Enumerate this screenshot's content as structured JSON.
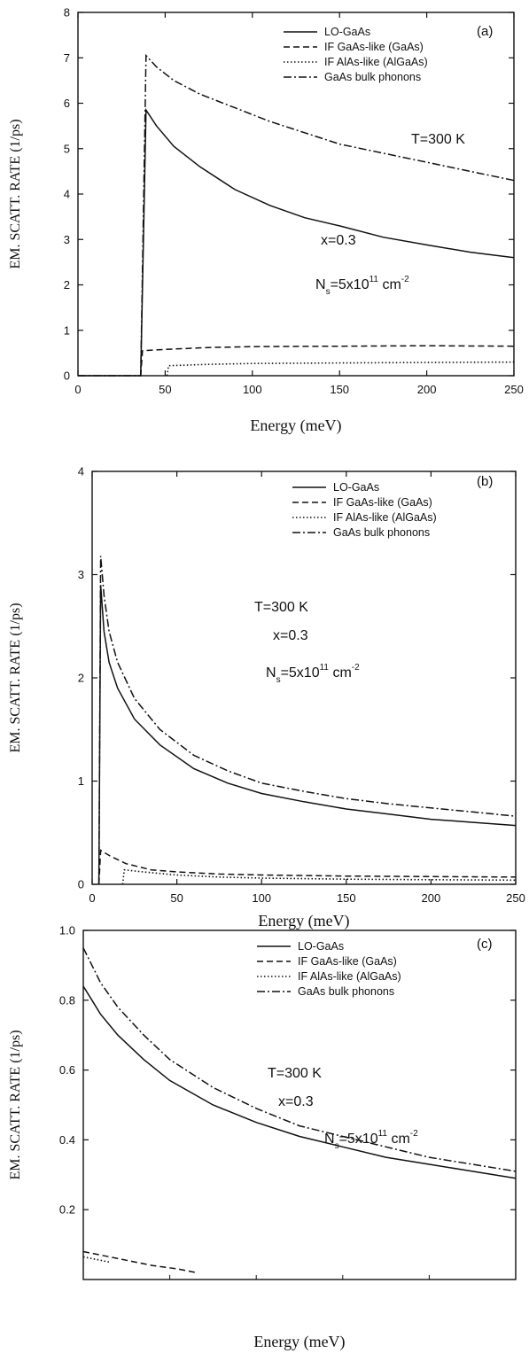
{
  "chart_data": [
    {
      "type": "line",
      "panel_label": "(a)",
      "xlabel": "Energy (meV)",
      "ylabel": "EM. SCATT. RATE (1/ps)",
      "xlim": [
        0,
        250
      ],
      "ylim": [
        0,
        8
      ],
      "xticks": [
        0,
        50,
        100,
        150,
        200,
        250
      ],
      "yticks": [
        0,
        1,
        2,
        3,
        4,
        5,
        6,
        7,
        8
      ],
      "legend_position": "top-right",
      "annotations": [
        "T=300 K",
        "x=0.3",
        "Ns=5x10^11 cm^-2"
      ],
      "series": [
        {
          "name": "LO-GaAs",
          "style": "solid",
          "x": [
            0,
            36,
            36,
            39,
            45,
            55,
            70,
            90,
            110,
            130,
            150,
            175,
            200,
            225,
            250
          ],
          "y": [
            0,
            0,
            0,
            5.85,
            5.5,
            5.05,
            4.6,
            4.1,
            3.75,
            3.48,
            3.3,
            3.05,
            2.88,
            2.72,
            2.6
          ]
        },
        {
          "name": "IF GaAs-like (GaAs)",
          "style": "dashed",
          "x": [
            36,
            37,
            50,
            75,
            100,
            150,
            200,
            250
          ],
          "y": [
            0,
            0.55,
            0.58,
            0.62,
            0.64,
            0.65,
            0.66,
            0.65
          ]
        },
        {
          "name": "IF AlAs-like (AlGaAs)",
          "style": "dotted",
          "x": [
            51,
            52,
            75,
            100,
            150,
            200,
            250
          ],
          "y": [
            0,
            0.22,
            0.25,
            0.27,
            0.28,
            0.29,
            0.3
          ]
        },
        {
          "name": "GaAs bulk phonons",
          "style": "dashdot",
          "x": [
            0,
            36,
            36,
            39,
            45,
            55,
            70,
            90,
            110,
            130,
            150,
            175,
            200,
            225,
            250
          ],
          "y": [
            0,
            0,
            0,
            7.05,
            6.8,
            6.5,
            6.2,
            5.9,
            5.6,
            5.35,
            5.1,
            4.9,
            4.7,
            4.5,
            4.3
          ]
        }
      ]
    },
    {
      "type": "line",
      "panel_label": "(b)",
      "xlabel": "Energy (meV)",
      "ylabel": "EM. SCATT. RATE (1/ps)",
      "xlim": [
        0,
        250
      ],
      "ylim": [
        0,
        4
      ],
      "xticks": [
        0,
        50,
        100,
        150,
        200,
        250
      ],
      "yticks": [
        0,
        1,
        2,
        3,
        4
      ],
      "legend_position": "top-right",
      "annotations": [
        "T=300 K",
        "x=0.3",
        "Ns=5x10^11 cm^-2"
      ],
      "series": [
        {
          "name": "LO-GaAs",
          "style": "solid",
          "x": [
            4,
            5,
            7,
            10,
            15,
            25,
            40,
            60,
            80,
            100,
            125,
            150,
            175,
            200,
            225,
            250
          ],
          "y": [
            0,
            2.9,
            2.45,
            2.15,
            1.9,
            1.6,
            1.35,
            1.12,
            0.98,
            0.88,
            0.8,
            0.73,
            0.68,
            0.63,
            0.6,
            0.57
          ]
        },
        {
          "name": "IF GaAs-like (GaAs)",
          "style": "dashed",
          "x": [
            4,
            5,
            10,
            20,
            35,
            50,
            75,
            100,
            150,
            200,
            250
          ],
          "y": [
            0,
            0.33,
            0.28,
            0.2,
            0.14,
            0.12,
            0.1,
            0.09,
            0.08,
            0.075,
            0.07
          ]
        },
        {
          "name": "IF AlAs-like (AlGaAs)",
          "style": "dotted",
          "x": [
            18,
            19,
            30,
            50,
            75,
            100,
            150,
            200,
            250
          ],
          "y": [
            0,
            0.14,
            0.12,
            0.09,
            0.07,
            0.06,
            0.05,
            0.045,
            0.04
          ]
        },
        {
          "name": "GaAs bulk phonons",
          "style": "dashdot",
          "x": [
            4,
            5,
            7,
            10,
            15,
            25,
            40,
            60,
            80,
            100,
            125,
            150,
            175,
            200,
            225,
            250
          ],
          "y": [
            0,
            3.18,
            2.8,
            2.45,
            2.15,
            1.8,
            1.5,
            1.25,
            1.1,
            0.98,
            0.9,
            0.83,
            0.78,
            0.74,
            0.7,
            0.66
          ]
        }
      ]
    },
    {
      "type": "line",
      "panel_label": "(c)",
      "xlabel": "Energy (meV)",
      "ylabel": "EM. SCATT. RATE (1/ps)",
      "xlim": [
        0,
        250
      ],
      "ylim": [
        0,
        1.0
      ],
      "xticks": [],
      "yticks": [
        0.2,
        0.4,
        0.6,
        0.8,
        1.0
      ],
      "ytick_labels": [
        "0.2",
        "0.4",
        "0.6",
        "0.8",
        "1.0"
      ],
      "legend_position": "top-right",
      "annotations": [
        "T=300 K",
        "x=0.3",
        "Ns=5x10^11 cm^-2"
      ],
      "series": [
        {
          "name": "LO-GaAs",
          "style": "solid",
          "x": [
            0,
            5,
            10,
            20,
            35,
            50,
            75,
            100,
            125,
            150,
            175,
            200,
            225,
            250
          ],
          "y": [
            0.84,
            0.8,
            0.76,
            0.7,
            0.63,
            0.57,
            0.5,
            0.45,
            0.41,
            0.38,
            0.35,
            0.33,
            0.31,
            0.29
          ]
        },
        {
          "name": "IF GaAs-like (GaAs)",
          "style": "dashed",
          "x": [
            0,
            10,
            25,
            40,
            55,
            65
          ],
          "y": [
            0.08,
            0.07,
            0.055,
            0.04,
            0.03,
            0.02
          ]
        },
        {
          "name": "IF AlAs-like (AlGaAs)",
          "style": "dotted",
          "x": [
            0,
            5,
            10,
            15
          ],
          "y": [
            0.065,
            0.06,
            0.055,
            0.05
          ]
        },
        {
          "name": "GaAs bulk phonons",
          "style": "dashdot",
          "x": [
            0,
            5,
            10,
            20,
            35,
            50,
            75,
            100,
            125,
            150,
            175,
            200,
            225,
            250
          ],
          "y": [
            0.95,
            0.9,
            0.85,
            0.78,
            0.7,
            0.63,
            0.55,
            0.49,
            0.44,
            0.41,
            0.38,
            0.35,
            0.33,
            0.31
          ]
        }
      ]
    }
  ],
  "ns_text": {
    "base": "N",
    "sub": "s",
    "mid": "=5x10",
    "sup": "11",
    "unit": " cm",
    "unit_sup": "-2"
  }
}
